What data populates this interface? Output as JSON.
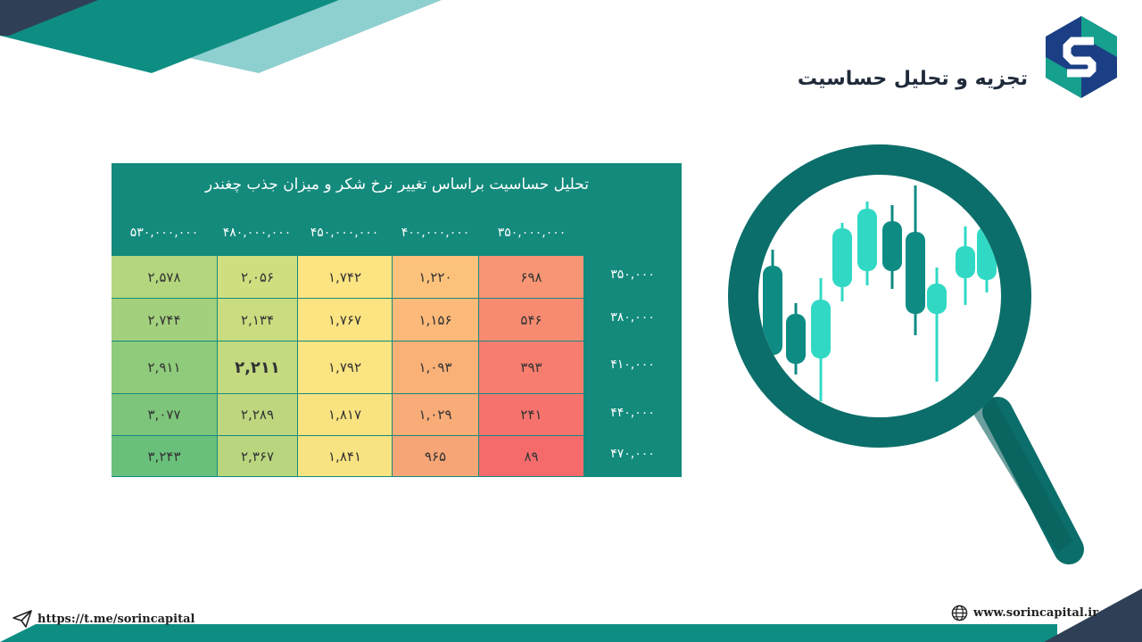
{
  "header": {
    "title": "تجزیه و تحلیل حساسیت",
    "logo": "sorin-capital-logo"
  },
  "table": {
    "title": "تحلیل حساسیت براساس تغییر نرخ شکر و میزان جذب چغندر",
    "column_headers": [
      "۵۳۰,۰۰۰,۰۰۰",
      "۴۸۰,۰۰۰,۰۰۰",
      "۴۵۰,۰۰۰,۰۰۰",
      "۴۰۰,۰۰۰,۰۰۰",
      "۳۵۰,۰۰۰,۰۰۰"
    ],
    "rows": [
      {
        "label": "۳۵۰,۰۰۰",
        "cells": [
          "۲,۵۷۸",
          "۲,۰۵۶",
          "۱,۷۴۲",
          "۱,۲۲۰",
          "۶۹۸"
        ]
      },
      {
        "label": "۳۸۰,۰۰۰",
        "cells": [
          "۲,۷۴۴",
          "۲,۱۳۴",
          "۱,۷۶۷",
          "۱,۱۵۶",
          "۵۴۶"
        ]
      },
      {
        "label": "۴۱۰,۰۰۰",
        "cells": [
          "۲,۹۱۱",
          "۲,۲۱۱",
          "۱,۷۹۲",
          "۱,۰۹۳",
          "۳۹۳"
        ]
      },
      {
        "label": "۴۴۰,۰۰۰",
        "cells": [
          "۳,۰۷۷",
          "۲,۲۸۹",
          "۱,۸۱۷",
          "۱,۰۲۹",
          "۲۴۱"
        ]
      },
      {
        "label": "۴۷۰,۰۰۰",
        "cells": [
          "۳,۲۴۳",
          "۲,۳۶۷",
          "۱,۸۴۱",
          "۹۶۵",
          "۸۹"
        ]
      }
    ],
    "highlighted_cell": {
      "row": 2,
      "col": 1
    },
    "colors": {
      "header_bg": "#138a7c",
      "grid": [
        [
          "#b4d67e",
          "#cfdf80",
          "#fce482",
          "#fcc27c",
          "#f89574"
        ],
        [
          "#a3d07c",
          "#c9dc80",
          "#fce482",
          "#fbb97a",
          "#f78b72"
        ],
        [
          "#8ecb7b",
          "#c3da80",
          "#fbe482",
          "#fab178",
          "#f77d6f"
        ],
        [
          "#7dc57a",
          "#bed77f",
          "#f9e381",
          "#f8ac77",
          "#f6736d"
        ],
        [
          "#69c07b",
          "#b9d67f",
          "#f7e381",
          "#f6a676",
          "#f56b6c"
        ]
      ]
    }
  },
  "footer": {
    "telegram_link": "https://t.me/sorincapital",
    "website": "www.sorincapital.ir",
    "telegram_icon": "paper-plane-icon",
    "website_icon": "globe-icon"
  },
  "decor": {
    "illustration": "magnifying-glass-candlestick-chart",
    "accent_dark": "#0b6e6a",
    "accent_teal": "#0e8e83",
    "accent_light": "#8ecfcf",
    "candle_dark": "#0e8b83",
    "candle_light": "#31d9c4"
  }
}
